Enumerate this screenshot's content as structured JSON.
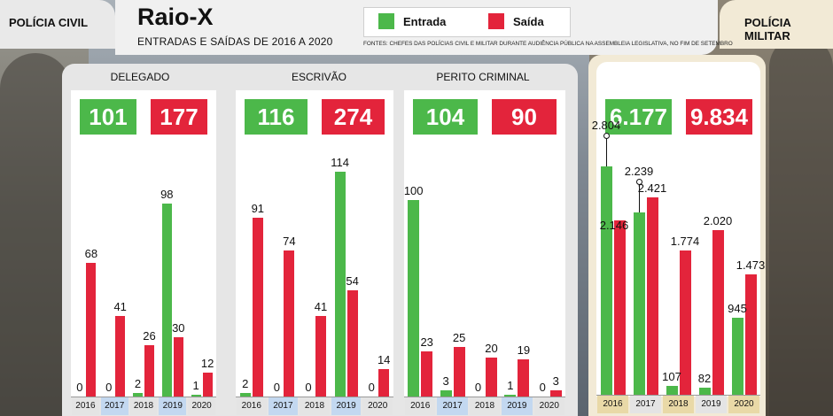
{
  "colors": {
    "entrada": "#4cb84a",
    "saida": "#e3243b",
    "year_blue": "#c3d8f0",
    "year_gray": "#e4e4e4",
    "year_gold": "#e9d9a7"
  },
  "header": {
    "left_tab": "POLÍCIA CIVIL",
    "right_tab": "POLÍCIA MILITAR",
    "title": "Raio-X",
    "subtitle": "ENTRADAS E SAÍDAS DE 2016 A 2020",
    "source": "FONTES: CHEFES DAS POLÍCIAS CIVIL E MILITAR DURANTE AUDIÊNCIA PÚBLICA NA ASSEMBLEIA LEGISLATIVA, NO FIM DE SETEMBRO"
  },
  "legend": {
    "entrada": "Entrada",
    "saida": "Saída"
  },
  "chart_data": [
    {
      "type": "bar",
      "title": "DELEGADO",
      "categories": [
        "2016",
        "2017",
        "2018",
        "2019",
        "2020"
      ],
      "series": [
        {
          "name": "Entrada",
          "values": [
            0,
            0,
            2,
            98,
            1
          ],
          "labels": [
            "0",
            "0",
            "2",
            "98",
            "1"
          ]
        },
        {
          "name": "Saída",
          "values": [
            68,
            41,
            26,
            30,
            12
          ],
          "labels": [
            "68",
            "41",
            "26",
            "30",
            "12"
          ]
        }
      ],
      "totals": {
        "entrada": "101",
        "saida": "177"
      },
      "ylim": [
        0,
        125
      ]
    },
    {
      "type": "bar",
      "title": "ESCRIVÃO",
      "categories": [
        "2016",
        "2017",
        "2018",
        "2019",
        "2020"
      ],
      "series": [
        {
          "name": "Entrada",
          "values": [
            2,
            0,
            0,
            114,
            0
          ],
          "labels": [
            "2",
            "0",
            "0",
            "114",
            "0"
          ]
        },
        {
          "name": "Saída",
          "values": [
            91,
            74,
            41,
            54,
            14
          ],
          "labels": [
            "91",
            "74",
            "41",
            "54",
            "14"
          ]
        }
      ],
      "totals": {
        "entrada": "116",
        "saida": "274"
      },
      "ylim": [
        0,
        125
      ]
    },
    {
      "type": "bar",
      "title": "PERITO CRIMINAL",
      "categories": [
        "2016",
        "2017",
        "2018",
        "2019",
        "2020"
      ],
      "series": [
        {
          "name": "Entrada",
          "values": [
            100,
            3,
            0,
            1,
            0
          ],
          "labels": [
            "100",
            "3",
            "0",
            "1",
            "0"
          ]
        },
        {
          "name": "Saída",
          "values": [
            23,
            25,
            20,
            19,
            3
          ],
          "labels": [
            "23",
            "25",
            "20",
            "19",
            "3"
          ]
        }
      ],
      "totals": {
        "entrada": "104",
        "saida": "90"
      },
      "ylim": [
        0,
        125
      ]
    },
    {
      "type": "bar",
      "title": "",
      "categories": [
        "2016",
        "2017",
        "2018",
        "2019",
        "2020"
      ],
      "series": [
        {
          "name": "Entrada",
          "values": [
            2804,
            2239,
            107,
            82,
            945
          ],
          "labels": [
            "2.804",
            "2.239",
            "107",
            "82",
            "945"
          ]
        },
        {
          "name": "Saída",
          "values": [
            2146,
            2421,
            1774,
            2020,
            1473
          ],
          "labels": [
            "2.146",
            "2.421",
            "1.774",
            "2.020",
            "1.473"
          ]
        }
      ],
      "totals": {
        "entrada": "6.177",
        "saida": "9.834"
      },
      "ylim": [
        0,
        3000
      ]
    }
  ]
}
